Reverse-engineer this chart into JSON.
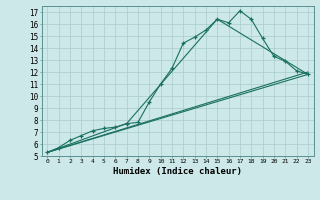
{
  "xlabel": "Humidex (Indice chaleur)",
  "bg_color": "#cce8e8",
  "grid_color": "#aacccc",
  "line_color": "#1a7060",
  "xlim": [
    -0.5,
    23.5
  ],
  "ylim": [
    5,
    17.5
  ],
  "xticks": [
    0,
    1,
    2,
    3,
    4,
    5,
    6,
    7,
    8,
    9,
    10,
    11,
    12,
    13,
    14,
    15,
    16,
    17,
    18,
    19,
    20,
    21,
    22,
    23
  ],
  "yticks": [
    5,
    6,
    7,
    8,
    9,
    10,
    11,
    12,
    13,
    14,
    15,
    16,
    17
  ],
  "series_main": {
    "x": [
      0,
      1,
      2,
      3,
      4,
      5,
      6,
      7,
      8,
      9,
      10,
      11,
      12,
      13,
      14,
      15,
      16,
      17,
      18,
      19,
      20,
      21,
      22,
      23
    ],
    "y": [
      5.3,
      5.7,
      6.3,
      6.7,
      7.1,
      7.3,
      7.4,
      7.7,
      7.8,
      9.5,
      11.0,
      12.3,
      14.4,
      14.9,
      15.5,
      16.4,
      16.1,
      17.1,
      16.4,
      14.8,
      13.3,
      12.9,
      12.1,
      11.8
    ]
  },
  "series_lines": [
    {
      "x": [
        0,
        7,
        15,
        23
      ],
      "y": [
        5.3,
        7.7,
        16.4,
        11.8
      ]
    },
    {
      "x": [
        0,
        23
      ],
      "y": [
        5.3,
        11.8
      ]
    },
    {
      "x": [
        0,
        23
      ],
      "y": [
        5.3,
        12.0
      ]
    }
  ]
}
